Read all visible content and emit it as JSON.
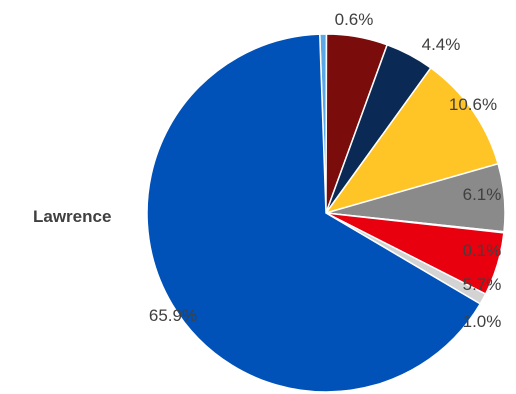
{
  "chart_data": {
    "type": "pie",
    "category_label": "Lawrence",
    "start_angle_deg": -2,
    "direction": "clockwise",
    "slices": [
      {
        "label": "0.6%",
        "value": 0.6,
        "color": "#5aa9e6"
      },
      {
        "label": "5.5%",
        "value": 5.5,
        "color": "#7b0c0c",
        "label_shown": false
      },
      {
        "label": "4.4%",
        "value": 4.4,
        "color": "#0a2a55"
      },
      {
        "label": "10.6%",
        "value": 10.6,
        "color": "#ffc425"
      },
      {
        "label": "6.1%",
        "value": 6.1,
        "color": "#8a8a8a"
      },
      {
        "label": "0.1%",
        "value": 0.1,
        "color": "#f7c6c6"
      },
      {
        "label": "5.7%",
        "value": 5.7,
        "color": "#e8000e"
      },
      {
        "label": "1.0%",
        "value": 1.0,
        "color": "#d3d3d3"
      },
      {
        "label": "65.9%",
        "value": 65.9,
        "color": "#0051b8"
      }
    ]
  }
}
